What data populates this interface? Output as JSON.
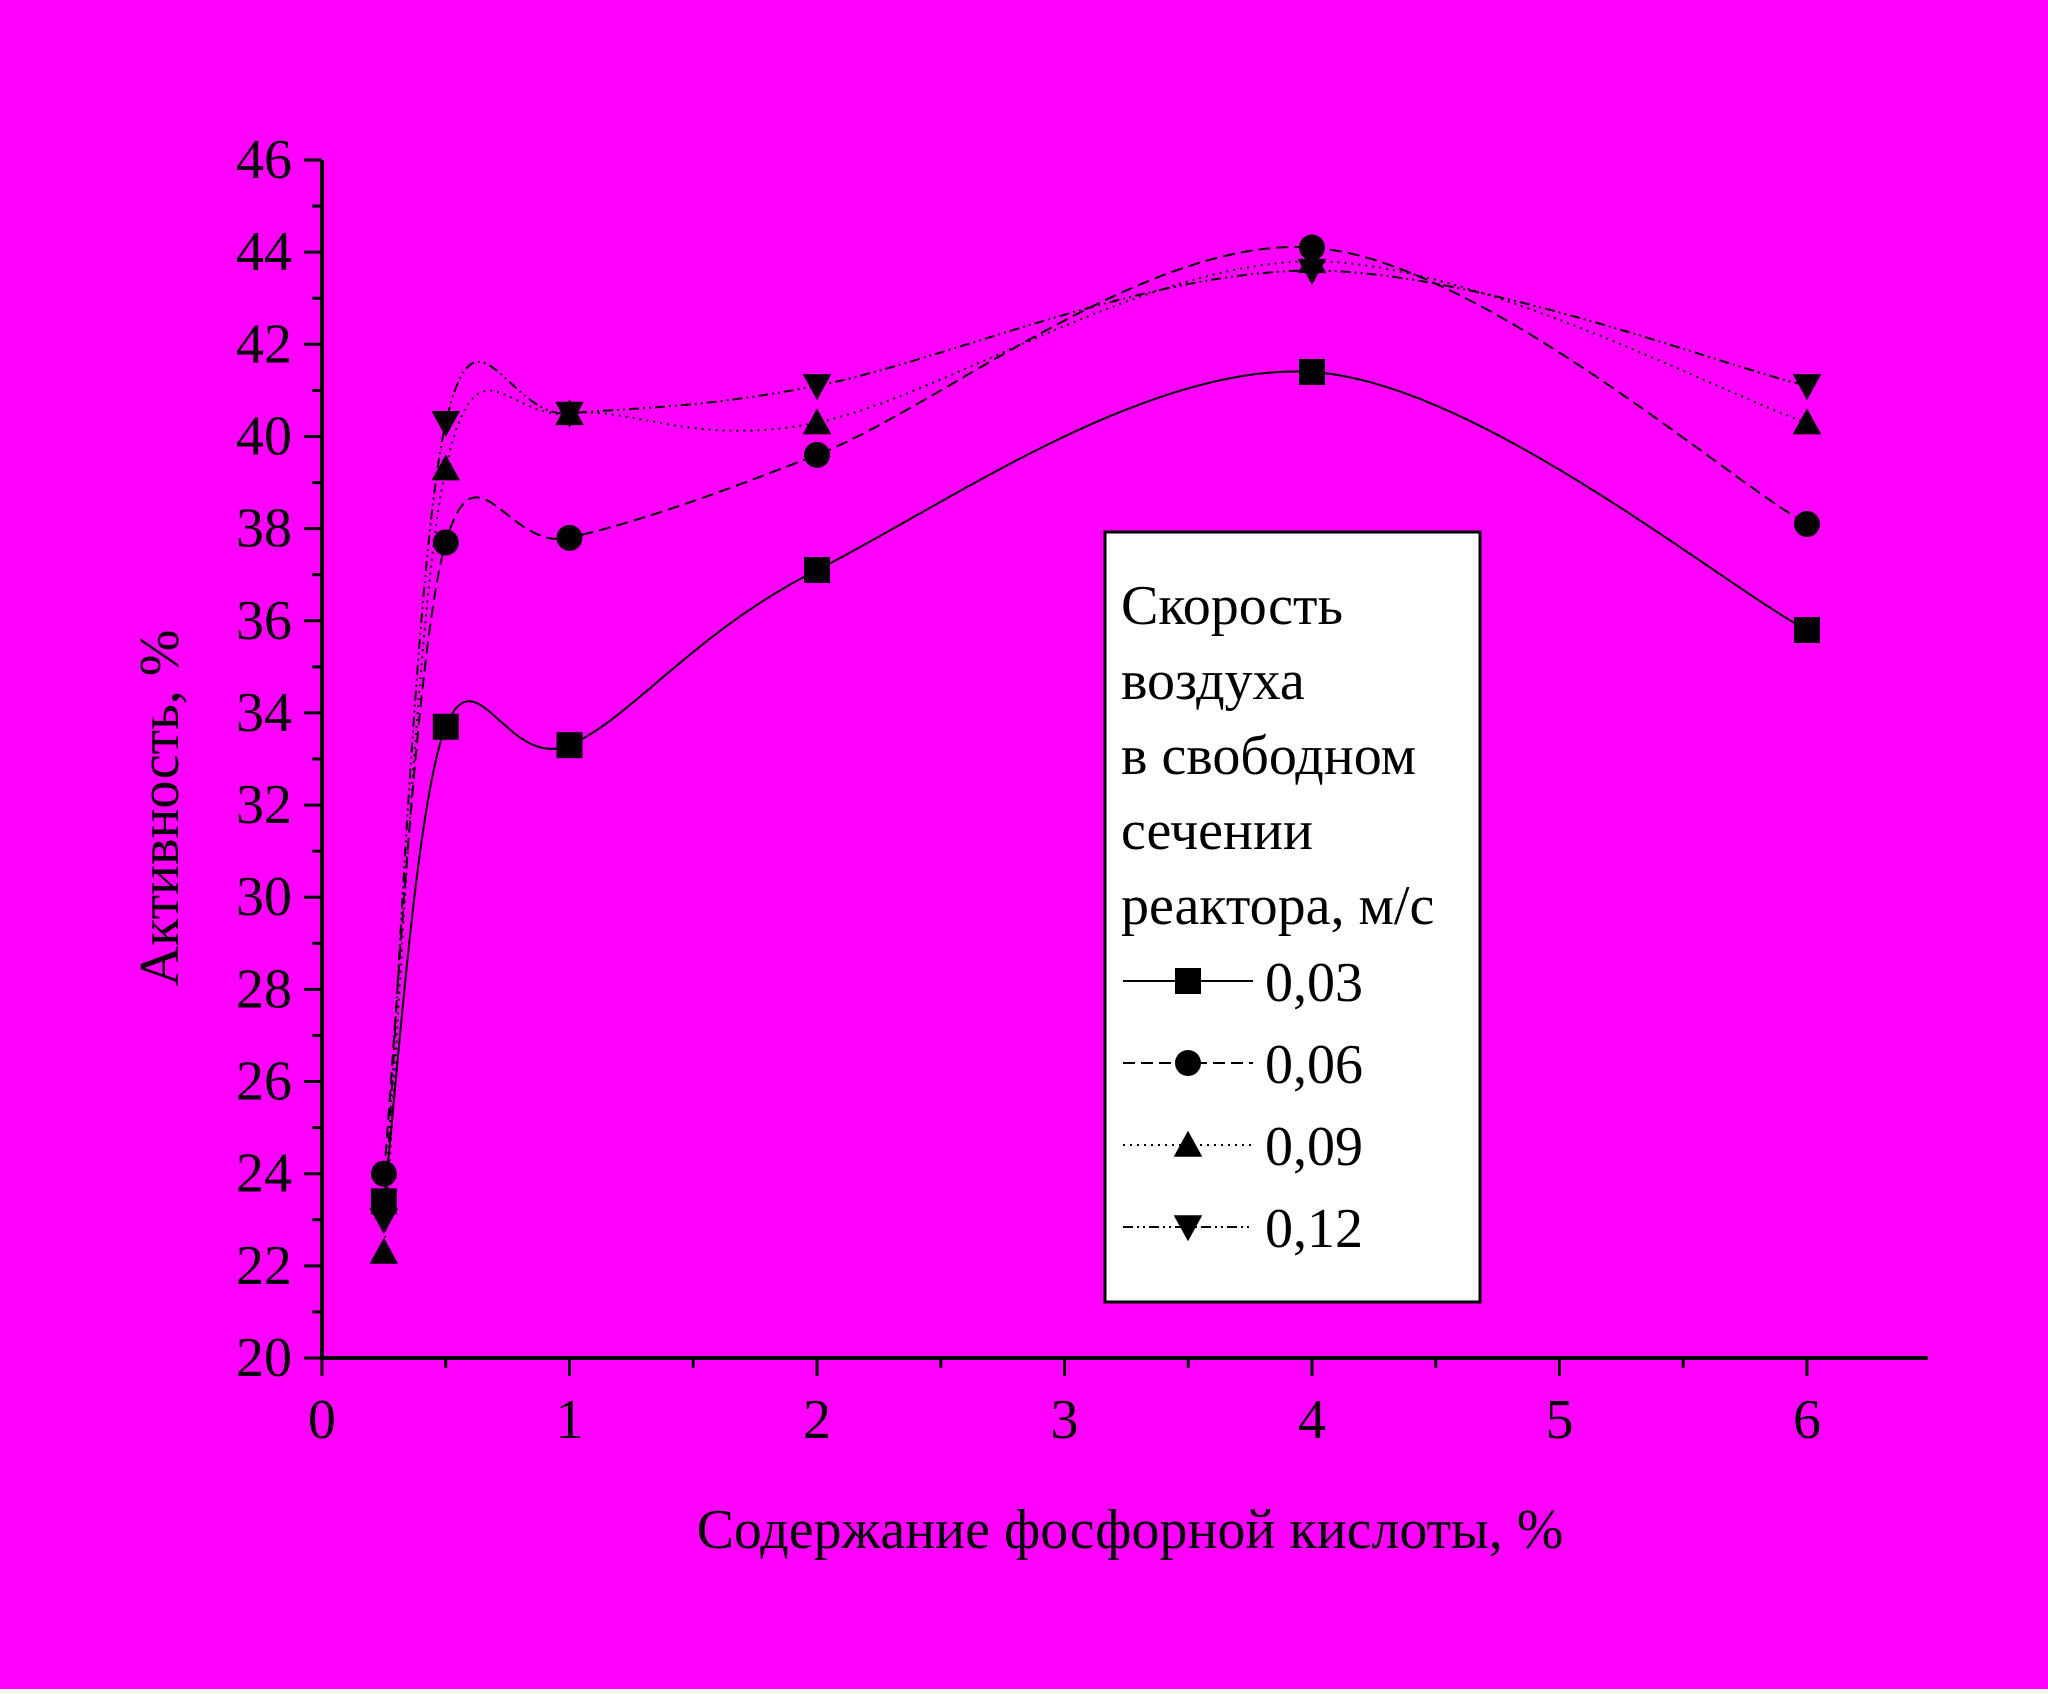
{
  "colors": {
    "background": "#FF00FF",
    "ink": "#000000",
    "legend_background": "#FFFFFF"
  },
  "chart_data": {
    "type": "scatter",
    "title": "",
    "xlabel": "Содержание фосфорной кислоты, %",
    "ylabel": "Активность, %",
    "xlim": [
      0,
      6.5
    ],
    "ylim": [
      20,
      46
    ],
    "x_ticks": [
      "0",
      "1",
      "2",
      "3",
      "4",
      "5",
      "6"
    ],
    "y_ticks": [
      "20",
      "22",
      "24",
      "26",
      "28",
      "30",
      "32",
      "34",
      "36",
      "38",
      "40",
      "42",
      "44",
      "46"
    ],
    "grid": false,
    "legend": {
      "title": "Скорость воздуха в свободном сечении реактора, м/с",
      "title_lines": [
        "Скорость",
        "воздуха",
        "в свободном",
        "сечении",
        "реактора, м/с"
      ],
      "placement": "center-right"
    },
    "series": [
      {
        "name": "0,03",
        "marker": "square",
        "line_style": "solid",
        "x": [
          0.25,
          0.5,
          1,
          2,
          4,
          6
        ],
        "y": [
          23.4,
          33.7,
          33.3,
          37.1,
          41.4,
          35.8
        ]
      },
      {
        "name": "0,06",
        "marker": "circle",
        "line_style": "dashed",
        "x": [
          0.25,
          0.5,
          1,
          2,
          4,
          6
        ],
        "y": [
          24.0,
          37.7,
          37.8,
          39.6,
          44.1,
          38.1
        ]
      },
      {
        "name": "0,09",
        "marker": "triangle-up",
        "line_style": "dotted",
        "x": [
          0.25,
          0.5,
          1,
          2,
          4,
          6
        ],
        "y": [
          22.3,
          39.3,
          40.5,
          40.3,
          43.8,
          40.3
        ]
      },
      {
        "name": "0,12",
        "marker": "triangle-down",
        "line_style": "dash-dot-dot",
        "x": [
          0.25,
          0.5,
          1,
          2,
          4,
          6
        ],
        "y": [
          23.0,
          40.3,
          40.5,
          41.1,
          43.6,
          41.1
        ]
      }
    ]
  }
}
